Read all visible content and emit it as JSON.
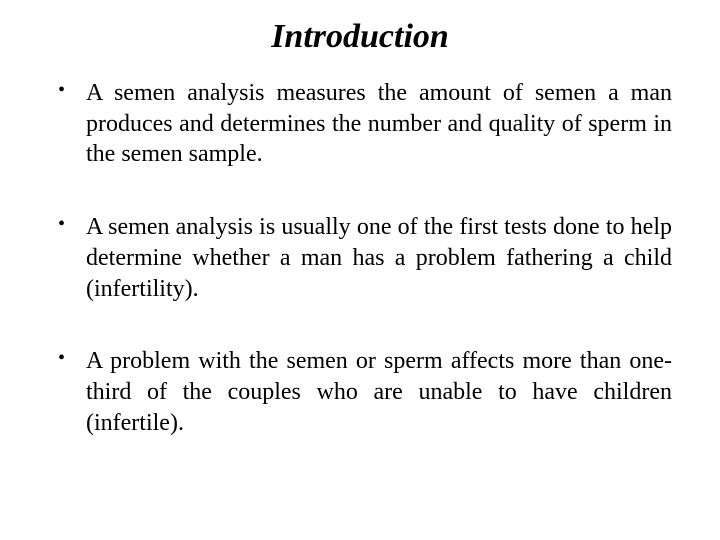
{
  "title": "Introduction",
  "title_fontsize": 34,
  "title_fontstyle": "italic",
  "title_fontweight": "bold",
  "body_fontsize": 24,
  "font_family": "Times New Roman",
  "text_color": "#000000",
  "background_color": "#ffffff",
  "text_align": "justify",
  "line_height": 1.28,
  "bullet_char": "•",
  "bullets": [
    "A semen analysis measures the amount of semen a man produces and determines the number and quality of sperm in the semen sample.",
    "A semen analysis is usually one of the first tests done to help determine whether a man has a problem fathering a child (infertility).",
    "A problem with the semen or sperm affects more than one-third of the couples who are unable to have children (infertile)."
  ]
}
